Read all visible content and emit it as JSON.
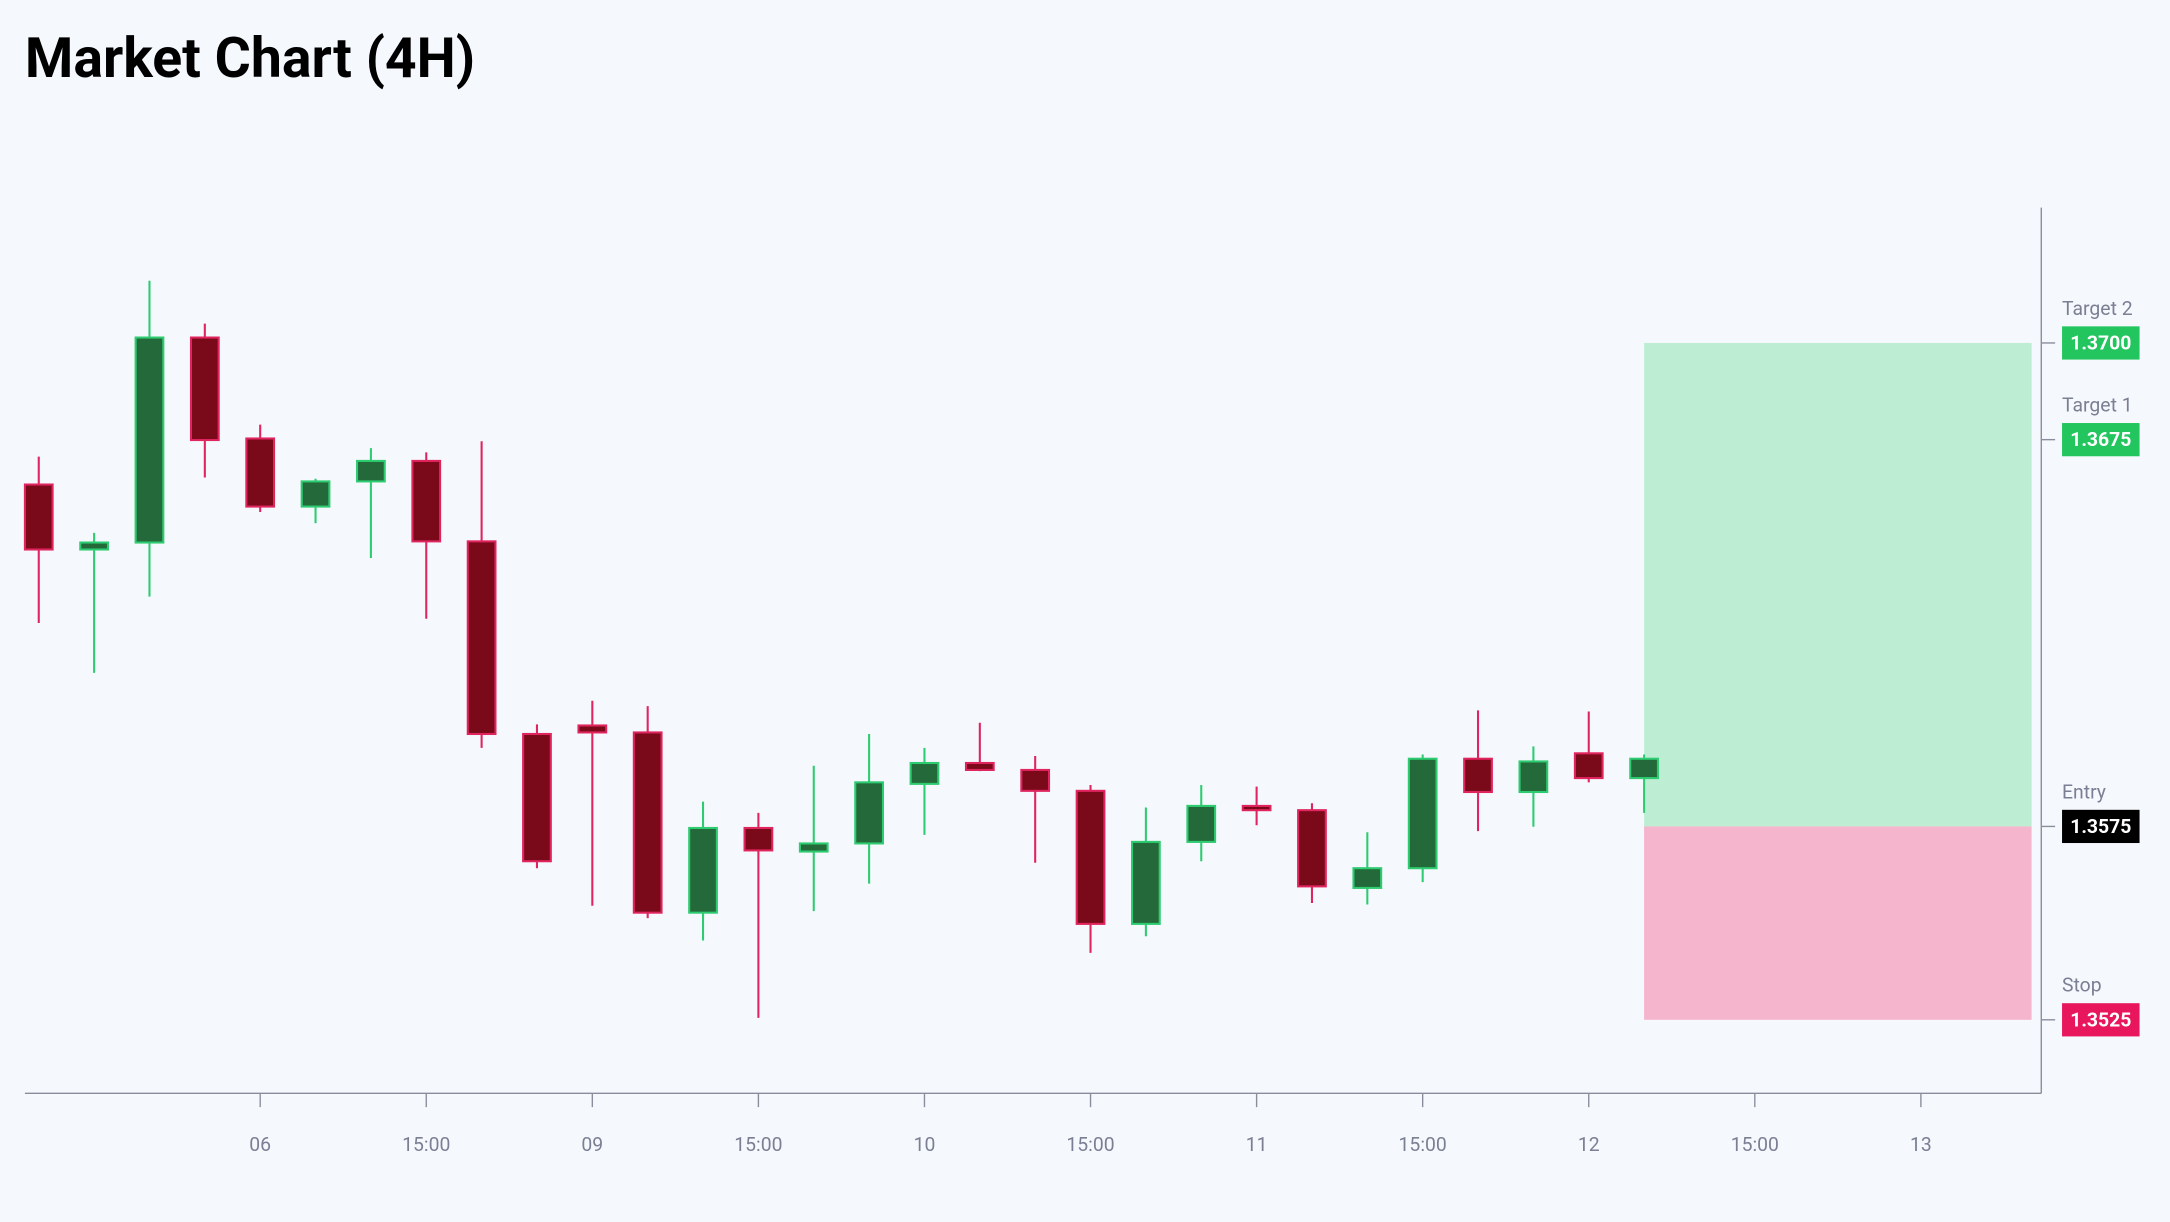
{
  "chart_data": {
    "type": "candlestick",
    "title": "Market Chart (4H)",
    "xlim": [
      -0.25,
      36.175
    ],
    "ylim": [
      1.3506,
      1.3735
    ],
    "xticks": [
      {
        "value": 4,
        "label": "06"
      },
      {
        "value": 7,
        "label": "15:00"
      },
      {
        "value": 10,
        "label": "09"
      },
      {
        "value": 13,
        "label": "15:00"
      },
      {
        "value": 16,
        "label": "10"
      },
      {
        "value": 19,
        "label": "15:00"
      },
      {
        "value": 22,
        "label": "11"
      },
      {
        "value": 25,
        "label": "15:00"
      },
      {
        "value": 28,
        "label": "12"
      },
      {
        "value": 31,
        "label": "15:00"
      },
      {
        "value": 34,
        "label": "13"
      }
    ],
    "up_color": "#24693a",
    "up_border": "#2ecc71",
    "down_color": "#7a0a1a",
    "down_border": "#e0245e",
    "open": [
      1.36634,
      1.36466,
      1.36484,
      1.37014,
      1.36753,
      1.36577,
      1.36642,
      1.36695,
      1.36487,
      1.35989,
      1.36011,
      1.35993,
      1.35527,
      1.35746,
      1.35685,
      1.35706,
      1.3586,
      1.35914,
      1.35896,
      1.35842,
      1.35498,
      1.3571,
      1.35803,
      1.35792,
      1.35591,
      1.35642,
      1.35925,
      1.35839,
      1.35939,
      1.35875
    ],
    "high": [
      1.36706,
      1.36509,
      1.37161,
      1.3705,
      1.36789,
      1.36649,
      1.36728,
      1.36717,
      1.36746,
      1.36014,
      1.36075,
      1.36061,
      1.35814,
      1.35785,
      1.35907,
      1.35989,
      1.35953,
      1.36018,
      1.35932,
      1.35857,
      1.35799,
      1.35857,
      1.35853,
      1.3581,
      1.35735,
      1.35936,
      1.3605,
      1.35957,
      1.36047,
      1.35936
    ],
    "low": [
      1.36276,
      1.36147,
      1.36344,
      1.36652,
      1.36563,
      1.36534,
      1.36444,
      1.36287,
      1.35953,
      1.35642,
      1.35545,
      1.35513,
      1.35455,
      1.35255,
      1.35531,
      1.35602,
      1.35728,
      1.35893,
      1.35656,
      1.35423,
      1.35466,
      1.3566,
      1.35753,
      1.35552,
      1.35548,
      1.35606,
      1.35738,
      1.35749,
      1.35864,
      1.35785
    ],
    "close": [
      1.36466,
      1.36484,
      1.37014,
      1.36749,
      1.36577,
      1.36642,
      1.36695,
      1.36487,
      1.35989,
      1.3566,
      1.35993,
      1.35527,
      1.35746,
      1.35688,
      1.35706,
      1.35864,
      1.35914,
      1.35896,
      1.35842,
      1.35498,
      1.3571,
      1.35803,
      1.35792,
      1.35595,
      1.35642,
      1.35925,
      1.35839,
      1.35918,
      1.35875,
      1.35925
    ],
    "box_x": [
      29,
      36
    ],
    "reward_color": "#bdeed4",
    "risk_color": "#f5b5cc",
    "levels": [
      {
        "name": "Target 2",
        "value": 1.37,
        "label": "1.3700",
        "color": "#22c55e",
        "text_color": "#ffffff"
      },
      {
        "name": "Target 1",
        "value": 1.3675,
        "label": "1.3675",
        "color": "#22c55e",
        "text_color": "#ffffff"
      },
      {
        "name": "Entry",
        "value": 1.3575,
        "label": "1.3575",
        "color": "#000000",
        "text_color": "#ffffff"
      },
      {
        "name": "Stop",
        "value": 1.3525,
        "label": "1.3525",
        "color": "#e8175d",
        "text_color": "#ffffff"
      }
    ]
  }
}
